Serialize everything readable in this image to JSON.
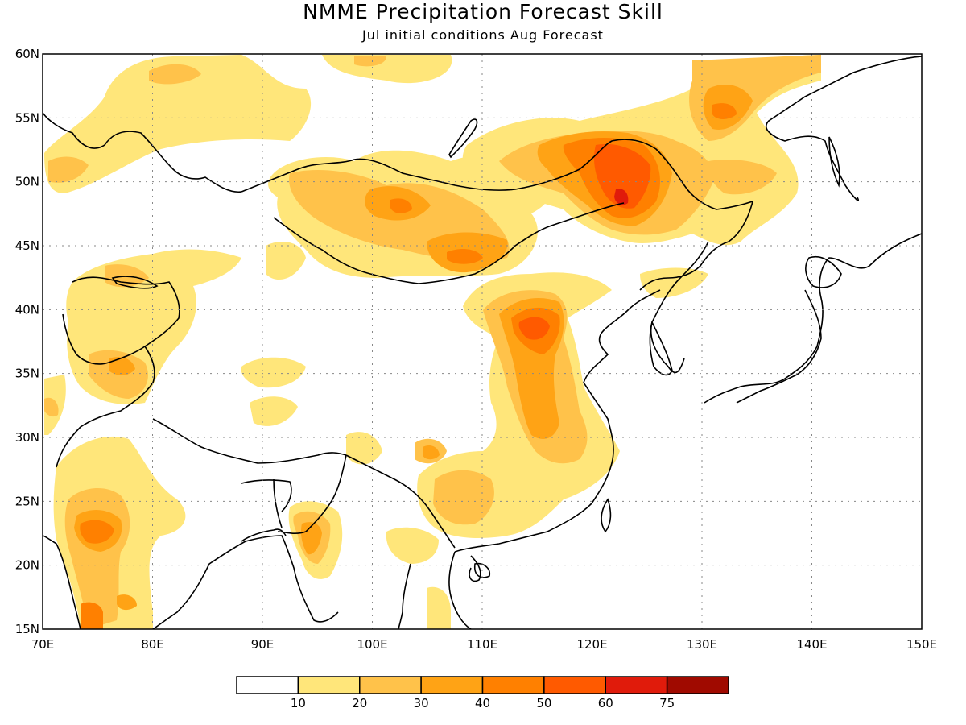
{
  "title": "NMME Precipitation Forecast Skill",
  "subtitle": "Jul initial conditions  Aug Forecast",
  "map": {
    "lon_range": [
      70,
      150
    ],
    "lat_range": [
      15,
      60
    ],
    "lon_ticks": [
      "70E",
      "80E",
      "90E",
      "100E",
      "110E",
      "120E",
      "130E",
      "140E",
      "150E"
    ],
    "lat_ticks": [
      "15N",
      "20N",
      "25N",
      "30N",
      "35N",
      "40N",
      "45N",
      "50N",
      "55N",
      "60N"
    ],
    "grid": "dotted"
  },
  "legend": {
    "labels": [
      "10",
      "20",
      "30",
      "40",
      "50",
      "60",
      "75"
    ],
    "colors": [
      "#ffffff",
      "#ffe67a",
      "#ffc24a",
      "#ffa315",
      "#ff8000",
      "#ff5a00",
      "#e01b0b",
      "#a00a00"
    ]
  }
}
